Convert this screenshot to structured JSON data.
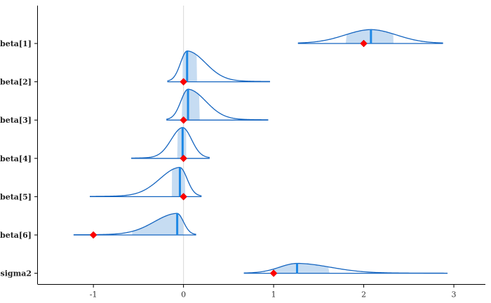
{
  "chart_data": {
    "type": "area",
    "title": "",
    "xlabel": "",
    "ylabel": "",
    "xlim": [
      -1.62,
      3.35
    ],
    "x_ticks": [
      -1,
      0,
      1,
      2,
      3
    ],
    "x_tick_labels": [
      "-1",
      "0",
      "1",
      "2",
      "3"
    ],
    "reference_line_x": 0,
    "grid": false,
    "colors": {
      "density_line": "#1565c0",
      "interval_fill": "#c6dcf2",
      "median_line": "#1e88e5",
      "true_value_marker": "#ff0000",
      "reference_line": "#dddddd",
      "axis": "#000000"
    },
    "parameters": [
      {
        "name": "beta[1]",
        "median": 2.08,
        "ci_low": 1.8,
        "ci_high": 2.33,
        "min": 1.27,
        "max": 2.88,
        "true_value": 2.0,
        "peak_height": 0.45,
        "skew": "symmetric"
      },
      {
        "name": "beta[2]",
        "median": 0.04,
        "ci_low": -0.01,
        "ci_high": 0.15,
        "min": -0.18,
        "max": 0.96,
        "true_value": 0.0,
        "peak_height": 1.0,
        "skew": "right"
      },
      {
        "name": "beta[3]",
        "median": 0.05,
        "ci_low": -0.02,
        "ci_high": 0.18,
        "min": -0.19,
        "max": 0.94,
        "true_value": 0.0,
        "peak_height": 1.0,
        "skew": "right"
      },
      {
        "name": "beta[4]",
        "median": -0.01,
        "ci_low": -0.07,
        "ci_high": 0.03,
        "min": -0.58,
        "max": 0.29,
        "true_value": 0.0,
        "peak_height": 1.0,
        "skew": "left"
      },
      {
        "name": "beta[5]",
        "median": -0.04,
        "ci_low": -0.13,
        "ci_high": 0.02,
        "min": -1.04,
        "max": 0.2,
        "true_value": 0.0,
        "peak_height": 0.95,
        "skew": "left"
      },
      {
        "name": "beta[6]",
        "median": -0.07,
        "ci_low": -0.57,
        "ci_high": 0.0,
        "min": -1.22,
        "max": 0.14,
        "true_value": -1.0,
        "peak_height": 0.7,
        "skew": "left"
      },
      {
        "name": "sigma2",
        "median": 1.26,
        "ci_low": 0.99,
        "ci_high": 1.62,
        "min": 0.67,
        "max": 2.93,
        "true_value": 1.0,
        "peak_height": 0.32,
        "skew": "right"
      }
    ]
  }
}
